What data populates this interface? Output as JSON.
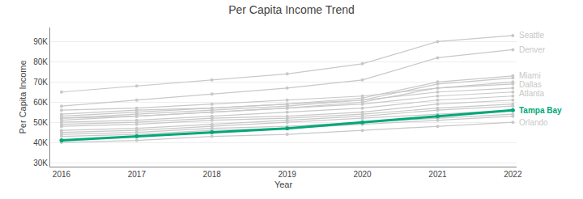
{
  "chart_data": {
    "type": "line",
    "title": "Per Capita Income Trend",
    "xlabel": "Year",
    "ylabel": "Per Capita Income",
    "x": [
      2016,
      2017,
      2018,
      2019,
      2020,
      2021,
      2022
    ],
    "xlim": [
      2015.85,
      2022.05
    ],
    "xticks": [
      2016,
      2017,
      2018,
      2019,
      2020,
      2021,
      2022
    ],
    "ylim": [
      28000,
      97000
    ],
    "yticks": [
      {
        "value": 30000,
        "label": "30K"
      },
      {
        "value": 40000,
        "label": "40K"
      },
      {
        "value": 50000,
        "label": "50K"
      },
      {
        "value": 60000,
        "label": "60K"
      },
      {
        "value": 70000,
        "label": "70K"
      },
      {
        "value": 80000,
        "label": "80K"
      },
      {
        "value": 90000,
        "label": "90K"
      }
    ],
    "grid": true,
    "marker": "circle",
    "series": [
      {
        "name": "Seattle",
        "color": "#C8C8C8",
        "values": [
          65000,
          68000,
          71000,
          74000,
          79000,
          90000,
          93000
        ]
      },
      {
        "name": "Denver",
        "color": "#C8C8C8",
        "values": [
          58000,
          61000,
          64000,
          67000,
          71000,
          82000,
          86000
        ]
      },
      {
        "name": "Miami",
        "color": "#C8C8C8",
        "values": [
          53000,
          55000,
          57000,
          59000,
          62000,
          70000,
          73000
        ]
      },
      {
        "name": "Dallas",
        "color": "#C8C8C8",
        "values": [
          52000,
          54000,
          56000,
          58000,
          61000,
          69000,
          72000
        ]
      },
      {
        "name": "Atlanta",
        "color": "#C8C8C8",
        "values": [
          51000,
          53000,
          55000,
          57000,
          60000,
          67000,
          70000
        ]
      },
      {
        "color": "#C8C8C8",
        "values": [
          56000,
          57000,
          59000,
          61000,
          63000,
          67000,
          69000
        ]
      },
      {
        "color": "#C8C8C8",
        "values": [
          54000,
          56000,
          57000,
          59000,
          61000,
          65000,
          67000
        ]
      },
      {
        "color": "#C8C8C8",
        "values": [
          52000,
          53000,
          55000,
          57000,
          59000,
          63000,
          65000
        ]
      },
      {
        "color": "#C8C8C8",
        "values": [
          50000,
          51000,
          53000,
          55000,
          57000,
          61000,
          63000
        ]
      },
      {
        "color": "#C8C8C8",
        "values": [
          49000,
          50000,
          52000,
          53000,
          55000,
          59000,
          61000
        ]
      },
      {
        "color": "#C8C8C8",
        "values": [
          48000,
          49000,
          51000,
          52000,
          54000,
          57000,
          59000
        ]
      },
      {
        "color": "#C8C8C8",
        "values": [
          46000,
          47000,
          49000,
          51000,
          53000,
          56000,
          58000
        ]
      },
      {
        "color": "#C8C8C8",
        "values": [
          45000,
          46000,
          48000,
          50000,
          52000,
          54000,
          56000
        ]
      },
      {
        "color": "#C8C8C8",
        "values": [
          44000,
          45000,
          47000,
          48000,
          50000,
          52000,
          54000
        ]
      },
      {
        "color": "#C8C8C8",
        "values": [
          43000,
          44000,
          46000,
          47000,
          49000,
          51000,
          53000
        ]
      },
      {
        "name": "Orlando",
        "color": "#C8C8C8",
        "values": [
          40000,
          41000,
          43000,
          44000,
          46000,
          48000,
          50000
        ]
      },
      {
        "name": "Tampa Bay",
        "color": "#00A878",
        "values": [
          41000,
          43000,
          45000,
          47000,
          50000,
          53000,
          56000
        ]
      }
    ]
  }
}
